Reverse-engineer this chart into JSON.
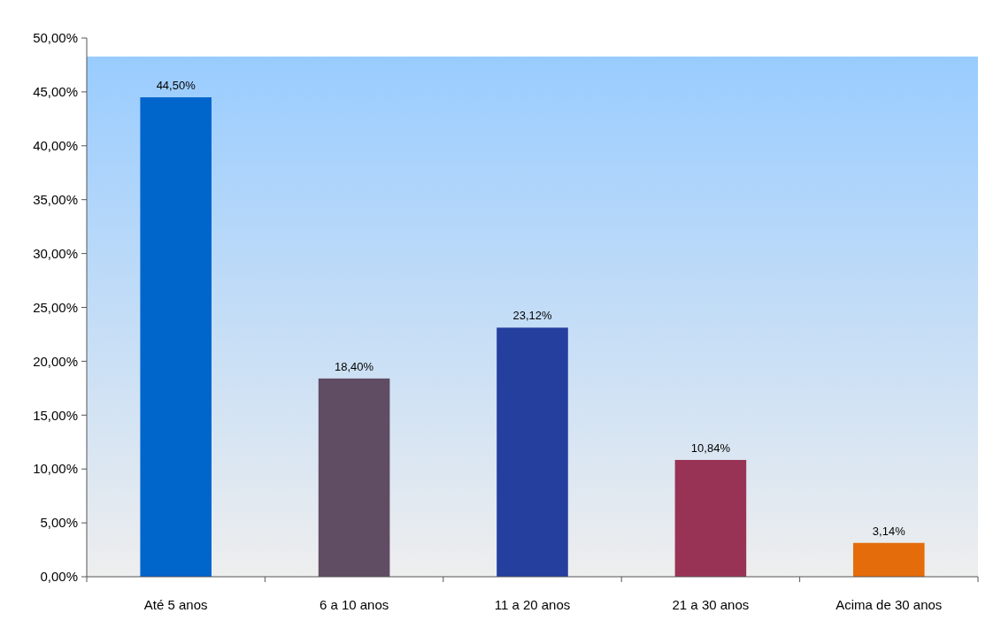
{
  "chart_data": {
    "type": "bar",
    "categories": [
      "Até 5 anos",
      "6 a 10 anos",
      "11 a 20 anos",
      "21 a 30 anos",
      "Acima de 30 anos"
    ],
    "values": [
      44.5,
      18.4,
      23.12,
      10.84,
      3.14
    ],
    "colors": [
      "#0066cc",
      "#604c63",
      "#253f9f",
      "#993355",
      "#e46c0a"
    ],
    "value_labels": [
      "44,50%",
      "18,40%",
      "23,12%",
      "10,84%",
      "3,14%"
    ],
    "ylim": [
      0,
      50
    ],
    "yticks": [
      {
        "value": 0,
        "label": "0,00%"
      },
      {
        "value": 5,
        "label": "5,00%"
      },
      {
        "value": 10,
        "label": "10,00%"
      },
      {
        "value": 15,
        "label": "15,00%"
      },
      {
        "value": 20,
        "label": "20,00%"
      },
      {
        "value": 25,
        "label": "25,00%"
      },
      {
        "value": 30,
        "label": "30,00%"
      },
      {
        "value": 35,
        "label": "35,00%"
      },
      {
        "value": 40,
        "label": "40,00%"
      },
      {
        "value": 45,
        "label": "45,00%"
      },
      {
        "value": 50,
        "label": "50,00%"
      }
    ],
    "grid": false
  }
}
